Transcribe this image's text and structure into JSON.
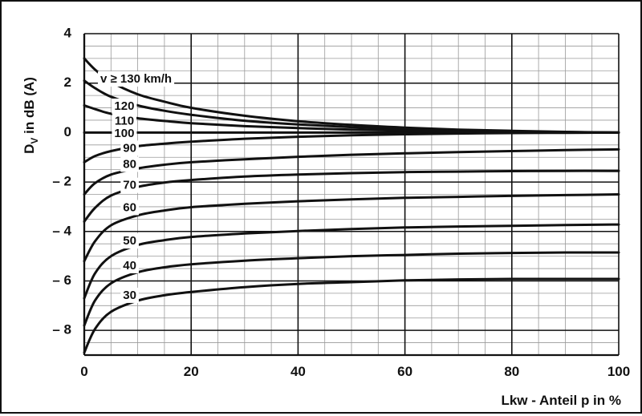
{
  "chart_data": {
    "type": "line",
    "xlabel": "Lkw - Anteil p in %",
    "ylabel_main": "D",
    "ylabel_sub": "V",
    "ylabel_rest": " in dB (A)",
    "xlim": [
      0,
      100
    ],
    "ylim": [
      -9,
      4
    ],
    "grid": true,
    "x_ticks": [
      {
        "value": 0,
        "label": "0"
      },
      {
        "value": 20,
        "label": "20"
      },
      {
        "value": 40,
        "label": "40"
      },
      {
        "value": 60,
        "label": "60"
      },
      {
        "value": 80,
        "label": "80"
      },
      {
        "value": 100,
        "label": "100"
      }
    ],
    "y_ticks": [
      {
        "value": 4,
        "label": "4"
      },
      {
        "value": 2,
        "label": "2"
      },
      {
        "value": 0,
        "label": "0"
      },
      {
        "value": -2,
        "label": "– 2"
      },
      {
        "value": -4,
        "label": "– 4"
      },
      {
        "value": -6,
        "label": "– 6"
      },
      {
        "value": -8,
        "label": "– 8"
      }
    ],
    "x": [
      0,
      2,
      5,
      10,
      15,
      20,
      30,
      40,
      50,
      60,
      70,
      80,
      90,
      100
    ],
    "series": [
      {
        "name": "v ≥ 130 km/h",
        "label_x": 3,
        "label_y": 2.15,
        "values": [
          3.0,
          2.55,
          2.05,
          1.55,
          1.25,
          1.0,
          0.68,
          0.46,
          0.31,
          0.2,
          0.12,
          0.07,
          0.03,
          0.0
        ]
      },
      {
        "name": "120",
        "label_x": 7.5,
        "label_y": 1.05,
        "values": [
          2.1,
          1.8,
          1.45,
          1.1,
          0.88,
          0.72,
          0.48,
          0.33,
          0.22,
          0.14,
          0.08,
          0.04,
          0.02,
          0.0
        ]
      },
      {
        "name": "110",
        "label_x": 7.5,
        "label_y": 0.45,
        "values": [
          1.1,
          0.95,
          0.76,
          0.58,
          0.47,
          0.38,
          0.26,
          0.18,
          0.12,
          0.08,
          0.05,
          0.03,
          0.01,
          0.0
        ]
      },
      {
        "name": "100",
        "label_x": 7.5,
        "label_y": -0.05,
        "values": [
          0.0,
          0.0,
          0.0,
          0.0,
          0.0,
          0.0,
          0.0,
          0.0,
          0.0,
          0.0,
          0.0,
          0.0,
          0.0,
          0.0
        ]
      },
      {
        "name": "90",
        "label_x": 8.5,
        "label_y": -0.65,
        "values": [
          -1.2,
          -0.95,
          -0.75,
          -0.55,
          -0.45,
          -0.37,
          -0.25,
          -0.17,
          -0.11,
          -0.07,
          -0.04,
          -0.02,
          -0.01,
          0.0
        ]
      },
      {
        "name": "80",
        "label_x": 8.5,
        "label_y": -1.3,
        "values": [
          -2.5,
          -2.05,
          -1.7,
          -1.45,
          -1.3,
          -1.2,
          -1.08,
          -0.98,
          -0.9,
          -0.84,
          -0.79,
          -0.75,
          -0.71,
          -0.68
        ]
      },
      {
        "name": "70",
        "label_x": 8.5,
        "label_y": -2.15,
        "values": [
          -3.6,
          -3.05,
          -2.55,
          -2.2,
          -2.02,
          -1.92,
          -1.78,
          -1.7,
          -1.64,
          -1.6,
          -1.58,
          -1.56,
          -1.55,
          -1.55
        ]
      },
      {
        "name": "60",
        "label_x": 8.5,
        "label_y": -3.05,
        "values": [
          -5.2,
          -4.4,
          -3.75,
          -3.35,
          -3.15,
          -3.02,
          -2.88,
          -2.78,
          -2.7,
          -2.64,
          -2.6,
          -2.56,
          -2.53,
          -2.5
        ]
      },
      {
        "name": "50",
        "label_x": 8.5,
        "label_y": -4.4,
        "values": [
          -6.7,
          -5.7,
          -5.0,
          -4.55,
          -4.35,
          -4.22,
          -4.08,
          -3.98,
          -3.9,
          -3.84,
          -3.8,
          -3.77,
          -3.74,
          -3.72
        ]
      },
      {
        "name": "40",
        "label_x": 8.5,
        "label_y": -5.4,
        "values": [
          -7.8,
          -6.8,
          -6.1,
          -5.65,
          -5.45,
          -5.33,
          -5.18,
          -5.08,
          -5.0,
          -4.95,
          -4.9,
          -4.87,
          -4.85,
          -4.85
        ]
      },
      {
        "name": "30",
        "label_x": 8.5,
        "label_y": -6.6,
        "values": [
          -8.9,
          -7.95,
          -7.25,
          -6.8,
          -6.58,
          -6.45,
          -6.25,
          -6.12,
          -6.05,
          -5.98,
          -5.94,
          -5.92,
          -5.92,
          -5.92
        ]
      }
    ]
  }
}
